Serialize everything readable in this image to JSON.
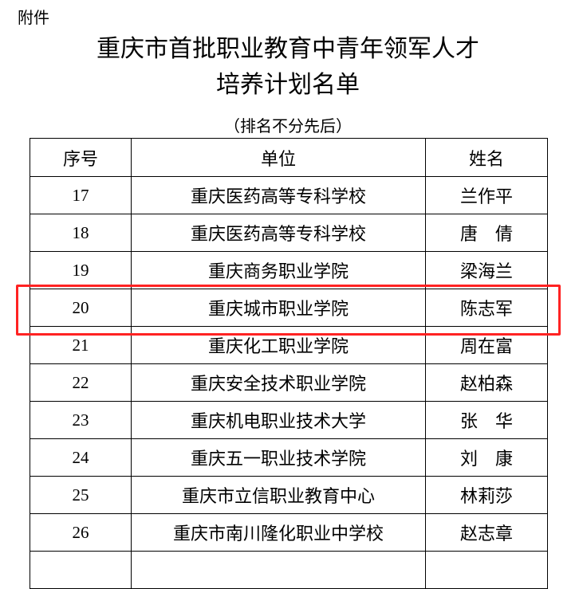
{
  "attachment_label": "附件",
  "title_line1": "重庆市首批职业教育中青年领军人才",
  "title_line2": "培养计划名单",
  "subtitle": "（排名不分先后）",
  "table": {
    "headers": [
      "序号",
      "单位",
      "姓名"
    ],
    "rows": [
      {
        "no": "17",
        "unit": "重庆医药高等专科学校",
        "name": "兰作平"
      },
      {
        "no": "18",
        "unit": "重庆医药高等专科学校",
        "name": "唐　倩"
      },
      {
        "no": "19",
        "unit": "重庆商务职业学院",
        "name": "梁海兰"
      },
      {
        "no": "20",
        "unit": "重庆城市职业学院",
        "name": "陈志军"
      },
      {
        "no": "21",
        "unit": "重庆化工职业学院",
        "name": "周在富"
      },
      {
        "no": "22",
        "unit": "重庆安全技术职业学院",
        "name": "赵柏森"
      },
      {
        "no": "23",
        "unit": "重庆机电职业技术大学",
        "name": "张　华"
      },
      {
        "no": "24",
        "unit": "重庆五一职业技术学院",
        "name": "刘　康"
      },
      {
        "no": "25",
        "unit": "重庆市立信职业教育中心",
        "name": "林莉莎"
      },
      {
        "no": "26",
        "unit": "重庆市南川隆化职业中学校",
        "name": "赵志章"
      },
      {
        "no": "",
        "unit": "",
        "name": ""
      }
    ]
  },
  "highlight_color": "#ff2222"
}
